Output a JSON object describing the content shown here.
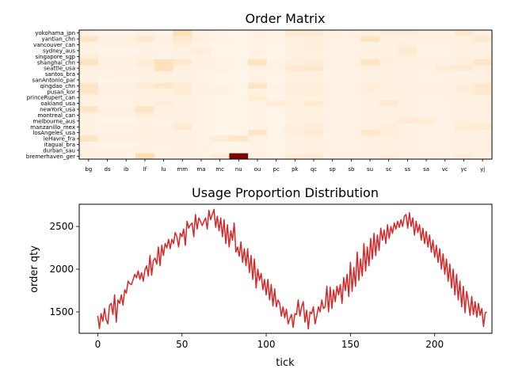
{
  "chart_data": [
    {
      "type": "heatmap",
      "title": "Order Matrix",
      "xlabel": "",
      "ylabel": "",
      "x_categories": [
        "bg",
        "ds",
        "ib",
        "lf",
        "lu",
        "mm",
        "ma",
        "mc",
        "nu",
        "ou",
        "pc",
        "pk",
        "qc",
        "sp",
        "sb",
        "su",
        "sc",
        "ss",
        "sa",
        "vc",
        "yc",
        "yj"
      ],
      "y_categories": [
        "yokohama_jpn",
        "yantian_chn",
        "vancouver_can",
        "sydney_aus",
        "singapore_sgp",
        "shanghai_chn",
        "seattle_usa",
        "santos_bra",
        "sanAntonio_par",
        "qingdao_chn",
        "pusan_kor",
        "princeRupert_can",
        "oakland_usa",
        "newYork_usa",
        "montreal_can",
        "melbourne_aus",
        "manzanillo_mex",
        "losAngeles_usa",
        "leHavre_fra",
        "itagual_bra",
        "durban_sau",
        "bremerhaven_ger"
      ],
      "colormap": [
        "#fff5eb",
        "#fdd49e",
        "#fc8d59",
        "#d7301f",
        "#7f0000"
      ],
      "value_range": [
        0,
        100
      ],
      "values": [
        [
          2,
          1,
          1,
          2,
          1,
          16,
          2,
          1,
          1,
          2,
          1,
          8,
          8,
          4,
          2,
          3,
          6,
          6,
          3,
          3,
          9,
          4
        ],
        [
          12,
          3,
          3,
          8,
          3,
          9,
          4,
          2,
          1,
          2,
          2,
          4,
          5,
          2,
          2,
          13,
          4,
          4,
          3,
          4,
          3,
          8
        ],
        [
          3,
          2,
          2,
          3,
          2,
          5,
          2,
          1,
          1,
          2,
          1,
          4,
          5,
          2,
          2,
          3,
          3,
          5,
          2,
          2,
          4,
          3
        ],
        [
          2,
          1,
          1,
          2,
          2,
          3,
          6,
          1,
          1,
          2,
          1,
          3,
          4,
          2,
          2,
          3,
          3,
          9,
          2,
          2,
          3,
          3
        ],
        [
          6,
          2,
          2,
          3,
          2,
          3,
          3,
          1,
          1,
          2,
          1,
          3,
          4,
          2,
          2,
          3,
          3,
          5,
          2,
          2,
          3,
          4
        ],
        [
          14,
          3,
          3,
          7,
          16,
          9,
          3,
          2,
          1,
          14,
          2,
          5,
          6,
          2,
          2,
          13,
          5,
          4,
          3,
          4,
          5,
          11
        ],
        [
          4,
          2,
          2,
          3,
          16,
          4,
          3,
          2,
          1,
          3,
          2,
          8,
          9,
          2,
          2,
          4,
          3,
          3,
          3,
          7,
          8,
          4
        ],
        [
          3,
          2,
          4,
          3,
          3,
          3,
          2,
          1,
          1,
          2,
          1,
          4,
          4,
          2,
          2,
          3,
          3,
          3,
          2,
          2,
          3,
          3
        ],
        [
          2,
          1,
          1,
          2,
          2,
          3,
          2,
          1,
          1,
          2,
          1,
          4,
          4,
          2,
          2,
          3,
          3,
          3,
          2,
          2,
          3,
          3
        ],
        [
          12,
          3,
          3,
          7,
          11,
          7,
          3,
          2,
          1,
          12,
          2,
          5,
          6,
          2,
          2,
          6,
          4,
          3,
          3,
          4,
          5,
          9
        ],
        [
          11,
          3,
          3,
          4,
          4,
          7,
          3,
          2,
          1,
          3,
          2,
          5,
          6,
          2,
          2,
          5,
          4,
          3,
          3,
          4,
          5,
          9
        ],
        [
          3,
          2,
          2,
          3,
          2,
          3,
          2,
          1,
          1,
          7,
          1,
          4,
          4,
          2,
          2,
          3,
          3,
          3,
          2,
          2,
          3,
          3
        ],
        [
          3,
          2,
          2,
          3,
          6,
          3,
          2,
          1,
          1,
          2,
          6,
          4,
          8,
          2,
          2,
          3,
          8,
          3,
          2,
          2,
          3,
          3
        ],
        [
          12,
          3,
          3,
          12,
          3,
          3,
          2,
          1,
          1,
          2,
          1,
          3,
          4,
          2,
          2,
          3,
          3,
          3,
          2,
          2,
          3,
          3
        ],
        [
          4,
          2,
          2,
          6,
          3,
          3,
          2,
          1,
          1,
          2,
          1,
          3,
          4,
          2,
          2,
          3,
          3,
          3,
          2,
          2,
          3,
          3
        ],
        [
          2,
          1,
          1,
          2,
          2,
          3,
          2,
          1,
          1,
          2,
          1,
          4,
          4,
          2,
          2,
          3,
          3,
          8,
          7,
          2,
          5,
          3
        ],
        [
          3,
          2,
          2,
          3,
          2,
          8,
          2,
          1,
          1,
          2,
          1,
          5,
          6,
          2,
          2,
          3,
          6,
          3,
          2,
          2,
          7,
          8
        ],
        [
          3,
          2,
          2,
          3,
          3,
          3,
          2,
          1,
          1,
          11,
          1,
          6,
          8,
          2,
          2,
          10,
          6,
          3,
          2,
          2,
          3,
          4
        ],
        [
          12,
          3,
          3,
          4,
          3,
          3,
          2,
          7,
          11,
          2,
          1,
          3,
          4,
          2,
          2,
          3,
          4,
          3,
          2,
          2,
          3,
          3
        ],
        [
          2,
          1,
          1,
          2,
          2,
          3,
          2,
          1,
          1,
          2,
          1,
          3,
          4,
          2,
          2,
          3,
          3,
          3,
          2,
          2,
          3,
          3
        ],
        [
          3,
          2,
          2,
          3,
          2,
          3,
          2,
          1,
          1,
          2,
          1,
          3,
          4,
          2,
          2,
          3,
          4,
          3,
          2,
          2,
          3,
          3
        ],
        [
          3,
          2,
          2,
          18,
          3,
          3,
          2,
          6,
          100,
          3,
          1,
          7,
          8,
          2,
          2,
          3,
          6,
          3,
          2,
          2,
          7,
          3
        ]
      ]
    },
    {
      "type": "line",
      "title": "Usage Proportion Distribution",
      "xlabel": "tick",
      "ylabel": "order qty",
      "xlim": [
        -11,
        234
      ],
      "ylim": [
        1250,
        2760
      ],
      "xticks": [
        0,
        50,
        100,
        150,
        200
      ],
      "yticks": [
        1500,
        2000,
        2500
      ],
      "color": "#d62728",
      "y": [
        1455,
        1305,
        1480,
        1390,
        1540,
        1410,
        1360,
        1580,
        1600,
        1470,
        1700,
        1380,
        1640,
        1600,
        1700,
        1580,
        1760,
        1720,
        1860,
        1830,
        1820,
        1880,
        1940,
        1900,
        1980,
        1880,
        1960,
        1860,
        1990,
        2040,
        1920,
        2160,
        1930,
        2100,
        2130,
        2060,
        2260,
        2040,
        2280,
        2160,
        2300,
        2250,
        2350,
        2240,
        2350,
        2300,
        2430,
        2380,
        2260,
        2420,
        2380,
        2470,
        2280,
        2560,
        2480,
        2520,
        2540,
        2380,
        2640,
        2470,
        2600,
        2560,
        2510,
        2560,
        2600,
        2470,
        2690,
        2580,
        2640,
        2700,
        2490,
        2620,
        2450,
        2600,
        2380,
        2580,
        2300,
        2520,
        2260,
        2450,
        2340,
        2540,
        2200,
        2260,
        2150,
        2320,
        2080,
        2240,
        2040,
        2240,
        1960,
        2160,
        1880,
        2120,
        1780,
        2000,
        1870,
        1950,
        1760,
        1880,
        1700,
        1880,
        1640,
        1820,
        1570,
        1770,
        1560,
        1640,
        1600,
        1450,
        1560,
        1430,
        1530,
        1360,
        1420,
        1470,
        1320,
        1480,
        1470,
        1640,
        1450,
        1560,
        1620,
        1380,
        1520,
        1300,
        1500,
        1480,
        1560,
        1360,
        1450,
        1560,
        1500,
        1640,
        1540,
        1560,
        1800,
        1500,
        1790,
        1540,
        1760,
        1620,
        1800,
        1700,
        1820,
        1600,
        1900,
        1750,
        1940,
        1680,
        2080,
        1740,
        2020,
        1800,
        2200,
        1870,
        2120,
        1920,
        2300,
        1980,
        2260,
        2040,
        2360,
        2120,
        2420,
        2160,
        2400,
        2220,
        2480,
        2340,
        2460,
        2300,
        2520,
        2360,
        2500,
        2420,
        2540,
        2470,
        2560,
        2490,
        2580,
        2500,
        2620,
        2640,
        2480,
        2660,
        2500,
        2600,
        2400,
        2560,
        2430,
        2520,
        2340,
        2480,
        2300,
        2440,
        2260,
        2400,
        2200,
        2340,
        2140,
        2280,
        2080,
        2240,
        2000,
        2180,
        1940,
        2120,
        1860,
        2060,
        1780,
        2000,
        1700,
        1940,
        1640,
        1860,
        1560,
        1800,
        1490,
        1740,
        1620,
        1460,
        1680,
        1470,
        1620,
        1440,
        1600,
        1460,
        1540,
        1330,
        1490,
        1500
      ]
    }
  ]
}
